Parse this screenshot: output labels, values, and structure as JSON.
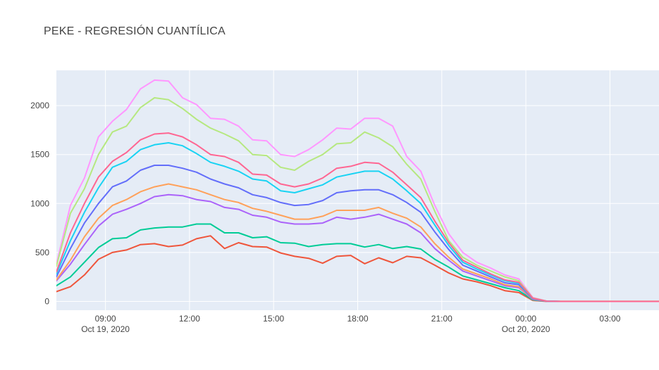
{
  "chart_data": {
    "type": "line",
    "title": "PEKE - REGRESIÓN CUANTÍLICA",
    "xlabel": "",
    "ylabel": "",
    "ylim": [
      -90,
      2360
    ],
    "xlim": [
      "2020-10-19 07:15",
      "2020-10-20 04:45"
    ],
    "grid": true,
    "legend": "none",
    "plot_bg": "#e5ecf6",
    "grid_color": "#ffffff",
    "y_ticks": [
      "0",
      "500",
      "1000",
      "1500",
      "2000"
    ],
    "x_ticks": [
      {
        "t": "2020-10-19 09:00",
        "label": "09:00",
        "sub": "Oct 19, 2020"
      },
      {
        "t": "2020-10-19 12:00",
        "label": "12:00",
        "sub": ""
      },
      {
        "t": "2020-10-19 15:00",
        "label": "15:00",
        "sub": ""
      },
      {
        "t": "2020-10-19 18:00",
        "label": "18:00",
        "sub": ""
      },
      {
        "t": "2020-10-19 21:00",
        "label": "21:00",
        "sub": ""
      },
      {
        "t": "2020-10-20 00:00",
        "label": "00:00",
        "sub": "Oct 20, 2020"
      },
      {
        "t": "2020-10-20 03:00",
        "label": "03:00",
        "sub": ""
      }
    ],
    "x": [
      "2020-10-19 07:15",
      "2020-10-19 07:45",
      "2020-10-19 08:15",
      "2020-10-19 08:45",
      "2020-10-19 09:15",
      "2020-10-19 09:45",
      "2020-10-19 10:15",
      "2020-10-19 10:45",
      "2020-10-19 11:15",
      "2020-10-19 11:45",
      "2020-10-19 12:15",
      "2020-10-19 12:45",
      "2020-10-19 13:15",
      "2020-10-19 13:45",
      "2020-10-19 14:15",
      "2020-10-19 14:45",
      "2020-10-19 15:15",
      "2020-10-19 15:45",
      "2020-10-19 16:15",
      "2020-10-19 16:45",
      "2020-10-19 17:15",
      "2020-10-19 17:45",
      "2020-10-19 18:15",
      "2020-10-19 18:45",
      "2020-10-19 19:15",
      "2020-10-19 19:45",
      "2020-10-19 20:15",
      "2020-10-19 20:45",
      "2020-10-19 21:15",
      "2020-10-19 21:45",
      "2020-10-19 22:15",
      "2020-10-19 22:45",
      "2020-10-19 23:15",
      "2020-10-19 23:45",
      "2020-10-20 00:15",
      "2020-10-20 00:45",
      "2020-10-20 01:15",
      "2020-10-20 01:45",
      "2020-10-20 02:15",
      "2020-10-20 02:45",
      "2020-10-20 03:15",
      "2020-10-20 03:45",
      "2020-10-20 04:15",
      "2020-10-20 04:45"
    ],
    "series": [
      {
        "color": "#ff97ff",
        "values": [
          380,
          980,
          1260,
          1680,
          1840,
          1960,
          2170,
          2260,
          2250,
          2080,
          2010,
          1870,
          1860,
          1790,
          1650,
          1640,
          1500,
          1480,
          1550,
          1650,
          1770,
          1760,
          1870,
          1870,
          1790,
          1480,
          1330,
          980,
          690,
          500,
          400,
          340,
          270,
          230,
          40,
          3,
          1,
          1,
          1,
          1,
          1,
          1,
          1,
          1
        ]
      },
      {
        "color": "#b6e880",
        "values": [
          360,
          900,
          1150,
          1500,
          1730,
          1790,
          1980,
          2080,
          2060,
          1970,
          1860,
          1770,
          1710,
          1640,
          1500,
          1490,
          1370,
          1340,
          1430,
          1500,
          1610,
          1620,
          1730,
          1670,
          1580,
          1400,
          1250,
          920,
          620,
          450,
          370,
          310,
          250,
          210,
          35,
          3,
          1,
          1,
          1,
          1,
          1,
          1,
          1,
          1
        ]
      },
      {
        "color": "#ef553b",
        "values": [
          100,
          150,
          270,
          430,
          500,
          525,
          580,
          590,
          560,
          575,
          640,
          670,
          540,
          600,
          560,
          555,
          495,
          460,
          440,
          390,
          460,
          470,
          385,
          445,
          395,
          460,
          445,
          370,
          290,
          230,
          200,
          160,
          110,
          90,
          10,
          0,
          0,
          0,
          0,
          0,
          0,
          0,
          0,
          0
        ]
      },
      {
        "color": "#00cc96",
        "values": [
          160,
          250,
          400,
          550,
          640,
          650,
          730,
          750,
          760,
          760,
          790,
          790,
          700,
          700,
          650,
          660,
          600,
          595,
          560,
          580,
          590,
          590,
          555,
          580,
          540,
          560,
          535,
          430,
          350,
          260,
          220,
          180,
          140,
          110,
          15,
          1,
          0,
          0,
          0,
          0,
          0,
          0,
          0,
          0
        ]
      },
      {
        "color": "#ab63fa",
        "values": [
          210,
          380,
          580,
          770,
          890,
          940,
          1000,
          1070,
          1090,
          1080,
          1040,
          1020,
          960,
          940,
          880,
          860,
          810,
          790,
          790,
          800,
          860,
          840,
          860,
          890,
          840,
          790,
          700,
          540,
          420,
          310,
          260,
          210,
          160,
          140,
          20,
          1,
          0,
          0,
          0,
          0,
          0,
          0,
          0,
          0
        ]
      },
      {
        "color": "#ffa15a",
        "values": [
          220,
          420,
          660,
          850,
          980,
          1040,
          1120,
          1170,
          1200,
          1170,
          1140,
          1090,
          1040,
          1010,
          950,
          920,
          880,
          840,
          840,
          870,
          930,
          930,
          930,
          960,
          900,
          850,
          760,
          590,
          450,
          330,
          280,
          230,
          170,
          150,
          22,
          1,
          0,
          0,
          0,
          0,
          0,
          0,
          0,
          0
        ]
      },
      {
        "color": "#636efa",
        "values": [
          250,
          540,
          800,
          1000,
          1170,
          1230,
          1340,
          1390,
          1390,
          1360,
          1320,
          1250,
          1200,
          1160,
          1090,
          1060,
          1010,
          980,
          990,
          1030,
          1110,
          1130,
          1140,
          1140,
          1090,
          1010,
          910,
          710,
          530,
          370,
          310,
          250,
          190,
          170,
          25,
          2,
          0,
          0,
          0,
          0,
          0,
          0,
          0,
          0
        ]
      },
      {
        "color": "#19d3f3",
        "values": [
          280,
          620,
          910,
          1160,
          1370,
          1430,
          1550,
          1600,
          1620,
          1590,
          1510,
          1420,
          1380,
          1330,
          1250,
          1230,
          1130,
          1110,
          1150,
          1190,
          1270,
          1300,
          1330,
          1330,
          1250,
          1130,
          1000,
          780,
          570,
          400,
          330,
          270,
          210,
          185,
          30,
          2,
          0,
          0,
          0,
          0,
          0,
          0,
          0,
          0
        ]
      },
      {
        "color": "#ff6692",
        "values": [
          300,
          700,
          1000,
          1270,
          1430,
          1520,
          1650,
          1710,
          1720,
          1680,
          1600,
          1500,
          1480,
          1420,
          1300,
          1290,
          1200,
          1170,
          1200,
          1260,
          1360,
          1380,
          1420,
          1410,
          1320,
          1190,
          1060,
          820,
          600,
          420,
          350,
          280,
          220,
          195,
          32,
          2,
          0,
          0,
          0,
          0,
          0,
          0,
          0,
          0
        ]
      }
    ]
  }
}
